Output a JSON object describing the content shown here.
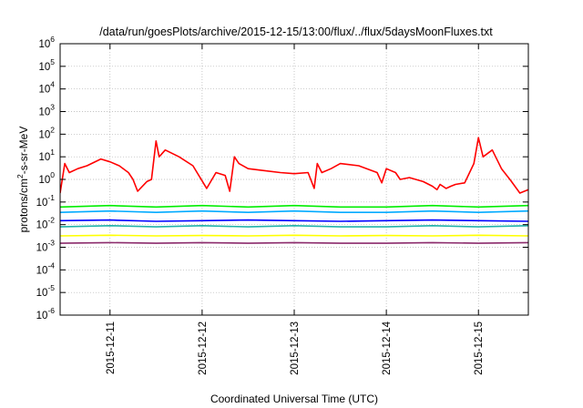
{
  "chart_data": {
    "type": "line",
    "title": "/data/run/goesPlots/archive/2015-12-15/13:00/flux/../flux/5daysMoonFluxes.txt",
    "xlabel": "Coordinated Universal Time (UTC)",
    "ylabel": "protons/cm²-s-sr-MeV",
    "ylabel_parts": {
      "a": "protons/cm",
      "sup": "2",
      "b": "-s-sr-MeV"
    },
    "x_tick_labels": [
      "2015-12-11",
      "2015-12-12",
      "2015-12-13",
      "2015-12-14",
      "2015-12-15"
    ],
    "xlim": [
      "2015-12-10T11:00",
      "2015-12-15T13:00"
    ],
    "y_scale": "log",
    "ylim": [
      1e-06,
      1000000.0
    ],
    "y_ticks": [
      {
        "base": "10",
        "exp": "-6",
        "value": 1e-06
      },
      {
        "base": "10",
        "exp": "-5",
        "value": 1e-05
      },
      {
        "base": "10",
        "exp": "-4",
        "value": 0.0001
      },
      {
        "base": "10",
        "exp": "-3",
        "value": 0.001
      },
      {
        "base": "10",
        "exp": "-2",
        "value": 0.01
      },
      {
        "base": "10",
        "exp": "-1",
        "value": 0.1
      },
      {
        "base": "10",
        "exp": "0",
        "value": 1
      },
      {
        "base": "10",
        "exp": "1",
        "value": 10
      },
      {
        "base": "10",
        "exp": "2",
        "value": 100
      },
      {
        "base": "10",
        "exp": "3",
        "value": 1000
      },
      {
        "base": "10",
        "exp": "4",
        "value": 10000
      },
      {
        "base": "10",
        "exp": "5",
        "value": 100000
      },
      {
        "base": "10",
        "exp": "6",
        "value": 1000000
      }
    ],
    "grid": true,
    "legend": "none",
    "series": [
      {
        "color": "#ff0000",
        "x": [
          "2015-12-10T11:00",
          "2015-12-10T12:12",
          "2015-12-10T13:24",
          "2015-12-10T15:36",
          "2015-12-10T18:00",
          "2015-12-10T21:36",
          "2015-12-11T00:00",
          "2015-12-11T02:24",
          "2015-12-11T04:48",
          "2015-12-11T06:00",
          "2015-12-11T07:12",
          "2015-12-11T09:36",
          "2015-12-11T10:48",
          "2015-12-11T12:00",
          "2015-12-11T12:48",
          "2015-12-11T14:24",
          "2015-12-11T18:00",
          "2015-12-11T21:36",
          "2015-12-12T01:12",
          "2015-12-12T03:36",
          "2015-12-12T06:00",
          "2015-12-12T07:12",
          "2015-12-12T08:24",
          "2015-12-12T09:36",
          "2015-12-12T12:00",
          "2015-12-12T15:36",
          "2015-12-12T20:24",
          "2015-12-13T00:00",
          "2015-12-13T03:36",
          "2015-12-13T05:12",
          "2015-12-13T06:00",
          "2015-12-13T07:12",
          "2015-12-13T09:36",
          "2015-12-13T12:00",
          "2015-12-13T16:48",
          "2015-12-13T21:36",
          "2015-12-13T22:48",
          "2015-12-14T00:00",
          "2015-12-14T02:24",
          "2015-12-14T03:36",
          "2015-12-14T06:00",
          "2015-12-14T09:36",
          "2015-12-14T12:00",
          "2015-12-14T13:12",
          "2015-12-14T14:00",
          "2015-12-14T15:36",
          "2015-12-14T16:48",
          "2015-12-14T18:00",
          "2015-12-14T20:24",
          "2015-12-14T22:48",
          "2015-12-15T00:00",
          "2015-12-15T01:12",
          "2015-12-15T03:36",
          "2015-12-15T06:00",
          "2015-12-15T08:24",
          "2015-12-15T10:48",
          "2015-12-15T13:00"
        ],
        "y": [
          0.25,
          5,
          2,
          3,
          4,
          8,
          6,
          4,
          2,
          1,
          0.3,
          0.8,
          1,
          50,
          10,
          20,
          10,
          4,
          0.4,
          2,
          1.5,
          0.3,
          10,
          5,
          3,
          2.5,
          2,
          1.8,
          2,
          0.4,
          5,
          2,
          3,
          5,
          4,
          2,
          0.7,
          3,
          2,
          1,
          1.2,
          0.8,
          0.5,
          0.35,
          0.6,
          0.4,
          0.5,
          0.6,
          0.7,
          5,
          70,
          10,
          20,
          3,
          0.9,
          0.25,
          0.35
        ]
      },
      {
        "color": "#00ee00",
        "x": [
          "2015-12-10T11:00",
          "2015-12-11T00:00",
          "2015-12-11T12:00",
          "2015-12-12T00:00",
          "2015-12-12T12:00",
          "2015-12-13T00:00",
          "2015-12-13T12:00",
          "2015-12-14T00:00",
          "2015-12-14T12:00",
          "2015-12-15T00:00",
          "2015-12-15T13:00"
        ],
        "y": [
          0.06,
          0.07,
          0.06,
          0.07,
          0.06,
          0.07,
          0.06,
          0.06,
          0.07,
          0.06,
          0.07
        ]
      },
      {
        "color": "#00aaff",
        "x": [
          "2015-12-10T11:00",
          "2015-12-11T00:00",
          "2015-12-11T12:00",
          "2015-12-12T00:00",
          "2015-12-12T12:00",
          "2015-12-13T00:00",
          "2015-12-13T12:00",
          "2015-12-14T00:00",
          "2015-12-14T12:00",
          "2015-12-15T00:00",
          "2015-12-15T13:00"
        ],
        "y": [
          0.035,
          0.04,
          0.035,
          0.04,
          0.035,
          0.04,
          0.035,
          0.035,
          0.04,
          0.035,
          0.04
        ]
      },
      {
        "color": "#0000ff",
        "x": [
          "2015-12-10T11:00",
          "2015-12-11T00:00",
          "2015-12-11T12:00",
          "2015-12-12T00:00",
          "2015-12-12T12:00",
          "2015-12-13T00:00",
          "2015-12-13T12:00",
          "2015-12-14T00:00",
          "2015-12-14T12:00",
          "2015-12-15T00:00",
          "2015-12-15T13:00"
        ],
        "y": [
          0.015,
          0.016,
          0.014,
          0.015,
          0.016,
          0.015,
          0.014,
          0.015,
          0.016,
          0.015,
          0.014
        ]
      },
      {
        "color": "#20b2aa",
        "x": [
          "2015-12-10T11:00",
          "2015-12-11T00:00",
          "2015-12-11T12:00",
          "2015-12-12T00:00",
          "2015-12-12T12:00",
          "2015-12-13T00:00",
          "2015-12-13T12:00",
          "2015-12-14T00:00",
          "2015-12-14T12:00",
          "2015-12-15T00:00",
          "2015-12-15T13:00"
        ],
        "y": [
          0.008,
          0.009,
          0.008,
          0.009,
          0.008,
          0.009,
          0.008,
          0.008,
          0.009,
          0.008,
          0.009
        ]
      },
      {
        "color": "#ffff00",
        "x": [
          "2015-12-10T11:00",
          "2015-12-11T00:00",
          "2015-12-11T12:00",
          "2015-12-12T00:00",
          "2015-12-12T12:00",
          "2015-12-13T00:00",
          "2015-12-13T12:00",
          "2015-12-14T00:00",
          "2015-12-14T12:00",
          "2015-12-15T00:00",
          "2015-12-15T13:00"
        ],
        "y": [
          0.0032,
          0.0034,
          0.0032,
          0.0033,
          0.0032,
          0.0034,
          0.0032,
          0.0033,
          0.0032,
          0.0034,
          0.0032
        ]
      },
      {
        "color": "#8b2a6b",
        "x": [
          "2015-12-10T11:00",
          "2015-12-11T00:00",
          "2015-12-11T12:00",
          "2015-12-12T00:00",
          "2015-12-12T12:00",
          "2015-12-13T00:00",
          "2015-12-13T12:00",
          "2015-12-14T00:00",
          "2015-12-14T12:00",
          "2015-12-15T00:00",
          "2015-12-15T13:00"
        ],
        "y": [
          0.0015,
          0.0016,
          0.0015,
          0.0016,
          0.0015,
          0.0016,
          0.0015,
          0.0015,
          0.0016,
          0.0015,
          0.0016
        ]
      }
    ]
  }
}
